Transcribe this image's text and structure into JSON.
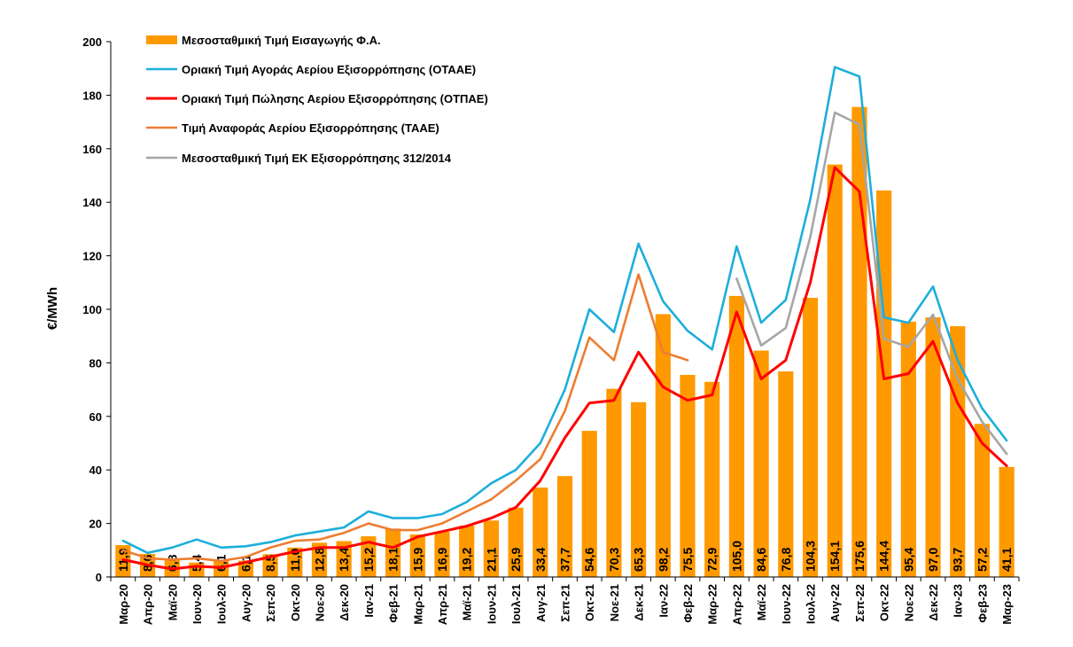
{
  "chart_data": {
    "type": "bar",
    "ylabel": "€/MWh",
    "xlabel": "",
    "ylim": [
      0,
      200
    ],
    "yticks": [
      0,
      20,
      40,
      60,
      80,
      100,
      120,
      140,
      160,
      180,
      200
    ],
    "grid": false,
    "legend_position": "top-left",
    "categories": [
      "Μαρ-20",
      "Απρ-20",
      "Μαϊ-20",
      "Ιουν-20",
      "Ιουλ-20",
      "Αυγ-20",
      "Σεπ-20",
      "Οκτ-20",
      "Νοε-20",
      "Δεκ-20",
      "Ιαν-21",
      "Φεβ-21",
      "Μαρ-21",
      "Απρ-21",
      "Μαϊ-21",
      "Ιουν-21",
      "Ιουλ-21",
      "Αυγ-21",
      "Σεπ-21",
      "Οκτ-21",
      "Νοε-21",
      "Δεκ-21",
      "Ιαν-22",
      "Φεβ-22",
      "Μαρ-22",
      "Απρ-22",
      "Μαϊ-22",
      "Ιουν-22",
      "Ιουλ-22",
      "Αυγ-22",
      "Σεπ-22",
      "Οκτ-22",
      "Νοε-22",
      "Δεκ-22",
      "Ιαν-23",
      "Φεβ-23",
      "Μαρ-23"
    ],
    "bar_series": {
      "name": "Μεσοσταθμική Τιμή Εισαγωγής Φ.Α.",
      "color": "#FF9900",
      "values": [
        11.9,
        8.6,
        6.8,
        5.4,
        6.1,
        6.1,
        8.5,
        11.0,
        12.8,
        13.4,
        15.2,
        18.1,
        15.9,
        16.9,
        19.2,
        21.1,
        25.9,
        33.4,
        37.7,
        54.6,
        70.3,
        65.3,
        98.2,
        75.5,
        72.9,
        105.0,
        84.6,
        76.8,
        104.3,
        154.1,
        175.6,
        144.4,
        95.4,
        97.0,
        93.7,
        57.2,
        41.1
      ],
      "labels": [
        "11,9",
        "8,6",
        "6,8",
        "5,4",
        "6,1",
        "6,1",
        "8,5",
        "11,0",
        "12,8",
        "13,4",
        "15,2",
        "18,1",
        "15,9",
        "16,9",
        "19,2",
        "21,1",
        "25,9",
        "33,4",
        "37,7",
        "54,6",
        "70,3",
        "65,3",
        "98,2",
        "75,5",
        "72,9",
        "105,0",
        "84,6",
        "76,8",
        "104,3",
        "154,1",
        "175,6",
        "144,4",
        "95,4",
        "97,0",
        "93,7",
        "57,2",
        "41,1"
      ]
    },
    "series": [
      {
        "name": "Οριακή Τιμή Αγοράς Αερίου Εξισορρόπησης  (ΟΤΑΑΕ)",
        "color": "#1EAEDB",
        "values": [
          13.5,
          9,
          11,
          14,
          11,
          11.5,
          13,
          15.5,
          17,
          18.5,
          24.5,
          22,
          22,
          23.5,
          28,
          35,
          40,
          50,
          70,
          100,
          91.5,
          124.5,
          103,
          92,
          85,
          123.5,
          95,
          103.5,
          141,
          190.5,
          187,
          97,
          95,
          108.5,
          81,
          63,
          51
        ]
      },
      {
        "name": "Οριακή Τιμή Πώλησης Αερίου Εξισορρόπησης (ΟΤΠΑΕ)",
        "color": "#FF0000",
        "values": [
          6.5,
          4.5,
          3,
          4,
          3.5,
          5.5,
          7.5,
          9.5,
          11,
          11,
          13,
          11,
          15,
          17,
          19,
          22,
          26,
          36,
          52,
          65,
          66,
          84,
          71,
          66,
          68,
          99,
          74,
          81,
          110,
          153,
          144,
          74,
          76,
          88,
          65,
          50,
          41.5
        ]
      },
      {
        "name": "Τιμή Αναφοράς Αερίου Εξισορρόπησης (ΤΑΑΕ)",
        "color": "#ED7D31",
        "values": [
          10,
          7,
          6.5,
          7,
          6,
          7.5,
          11,
          13.5,
          14,
          16.5,
          20,
          17.5,
          17.5,
          20,
          24.5,
          29,
          36,
          44,
          62,
          89.5,
          81,
          113,
          84,
          81,
          null,
          null,
          null,
          null,
          null,
          null,
          null,
          null,
          null,
          null,
          null,
          null,
          null
        ]
      },
      {
        "name": "Μεσοσταθμική Τιμή ΕΚ Εξισορρόπησης 312/2014",
        "color": "#A6A6A6",
        "values": [
          null,
          null,
          null,
          null,
          null,
          null,
          null,
          null,
          null,
          null,
          null,
          null,
          null,
          null,
          null,
          null,
          null,
          null,
          null,
          null,
          null,
          null,
          null,
          null,
          null,
          111.5,
          86.5,
          93,
          127,
          173.5,
          169,
          89,
          86,
          98,
          74,
          58,
          46
        ]
      }
    ]
  }
}
